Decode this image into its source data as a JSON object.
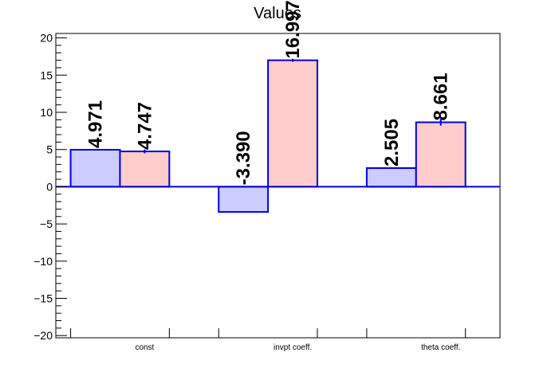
{
  "chart_data": {
    "type": "bar",
    "title": "Values",
    "xlabel": "",
    "ylabel": "",
    "categories": [
      "const",
      "invpt coeff.",
      "theta coeff."
    ],
    "series": [
      {
        "values": [
          4.971,
          -3.39,
          2.505
        ],
        "errors": [
          0.0,
          0.0,
          0.0
        ]
      },
      {
        "values": [
          4.747,
          16.997,
          8.661
        ],
        "errors": [
          0.25,
          0.2,
          0.45
        ]
      }
    ],
    "data_labels": [
      [
        "4.971",
        "-3.390",
        "2.505"
      ],
      [
        "4.747",
        "16.997",
        "8.661"
      ]
    ],
    "ylim": [
      -20.3,
      20.6
    ],
    "yticks": [
      -20,
      -15,
      -10,
      -5,
      0,
      5,
      10,
      15,
      20
    ],
    "ytick_labels": [
      "−20",
      "−15",
      "−10",
      "−5",
      "0",
      "5",
      "10",
      "15",
      "20"
    ],
    "grid": false,
    "legend": "none",
    "colors": {
      "series1_fill": "#ccccff",
      "series2_fill": "#ffcccc",
      "bar_stroke": "#0000dd",
      "zero_line": "#0000dd",
      "axis": "#000000"
    }
  }
}
